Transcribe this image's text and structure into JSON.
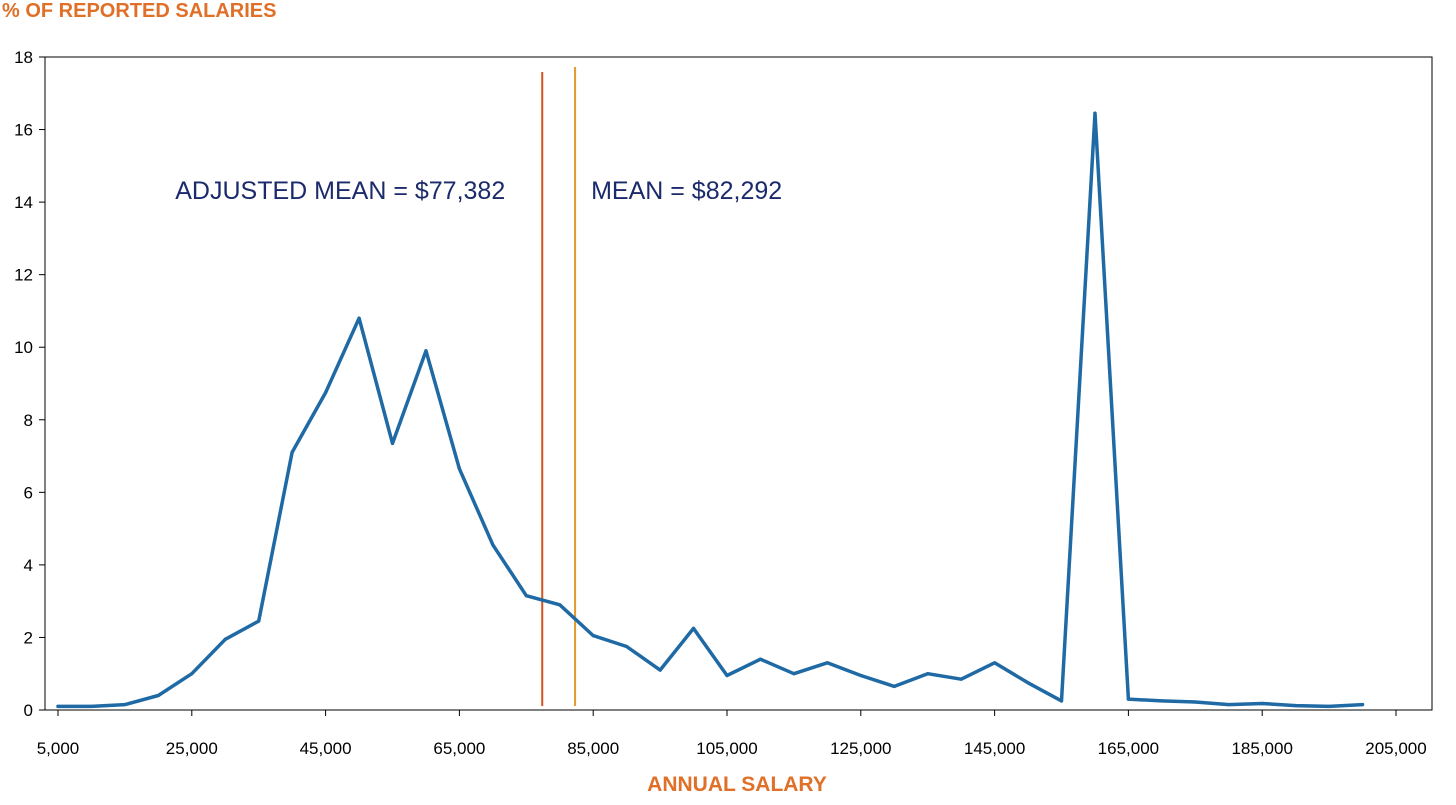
{
  "chart_data": {
    "type": "line",
    "ylabel": "% OF REPORTED SALARIES",
    "xlabel": "ANNUAL SALARY",
    "xlim": [
      5000,
      205000
    ],
    "ylim": [
      0,
      18
    ],
    "x_ticks": [
      5000,
      25000,
      45000,
      65000,
      85000,
      105000,
      125000,
      145000,
      165000,
      185000,
      205000
    ],
    "x_tick_labels": [
      "5,000",
      "25,000",
      "45,000",
      "65,000",
      "85,000",
      "105,000",
      "125,000",
      "145,000",
      "165,000",
      "185,000",
      "205,000"
    ],
    "y_ticks": [
      0,
      2,
      4,
      6,
      8,
      10,
      12,
      14,
      16,
      18
    ],
    "y_tick_labels": [
      "0",
      "2",
      "4",
      "6",
      "8",
      "10",
      "12",
      "14",
      "16",
      "18"
    ],
    "grid": false,
    "colors": {
      "line": "#1F6AA5",
      "adjusted_mean": "#D2541E",
      "mean": "#E39A2B",
      "axis_title": "#E07028",
      "annotation": "#1B2A6B"
    },
    "series": [
      {
        "x": [
          5000,
          10000,
          15000,
          20000,
          25000,
          30000,
          35000,
          40000,
          45000,
          50000,
          55000,
          60000,
          65000,
          70000,
          75000,
          80000,
          85000,
          90000,
          95000,
          100000,
          105000,
          110000,
          115000,
          120000,
          125000,
          130000,
          135000,
          140000,
          145000,
          150000,
          155000,
          160000,
          165000,
          170000,
          175000,
          180000,
          185000,
          190000,
          195000,
          200000
        ],
        "values": [
          0.1,
          0.1,
          0.15,
          0.4,
          1.0,
          1.95,
          2.45,
          7.1,
          8.75,
          10.8,
          7.35,
          9.9,
          6.65,
          4.55,
          3.15,
          2.9,
          2.05,
          1.75,
          1.1,
          2.25,
          0.95,
          1.4,
          1.0,
          1.3,
          0.95,
          0.65,
          1.0,
          0.85,
          1.3,
          0.75,
          0.25,
          16.45,
          0.3,
          0.25,
          0.22,
          0.15,
          0.18,
          0.12,
          0.1,
          0.15
        ]
      }
    ],
    "reference_lines": [
      {
        "x": 77382,
        "label": "ADJUSTED MEAN = $77,382",
        "label_side": "left"
      },
      {
        "x": 82292,
        "label": "MEAN = $82,292",
        "label_side": "right"
      }
    ]
  }
}
